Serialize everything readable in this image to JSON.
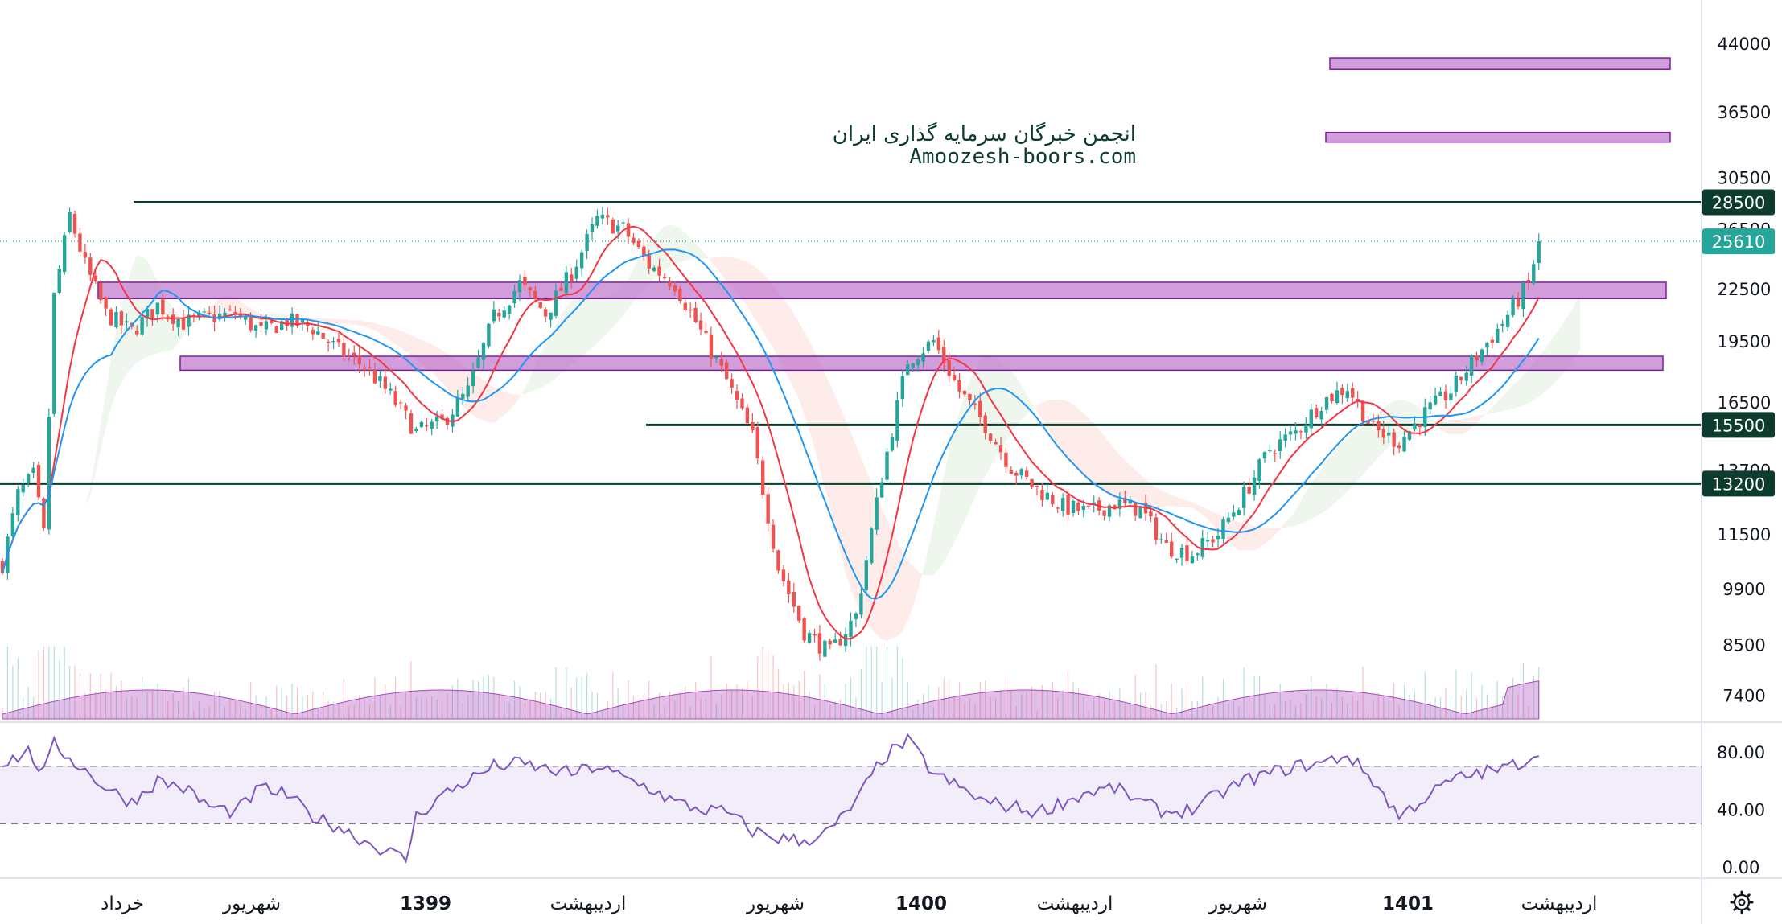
{
  "watermark": {
    "line1": "انجمن خبرگان سرمایه گذاری ایران",
    "line2": "Amoozesh-boors.com"
  },
  "price_axis": {
    "ticks": [
      "44000",
      "36500",
      "30500",
      "26500",
      "22500",
      "19500",
      "16500",
      "13700",
      "11500",
      "9900",
      "8500",
      "7400"
    ],
    "tags": [
      {
        "label": "28500",
        "color": "#0d3b2e"
      },
      {
        "label": "25610",
        "color": "#26a69a"
      },
      {
        "label": "15500",
        "color": "#0d3b2e"
      },
      {
        "label": "13200",
        "color": "#0d3b2e"
      }
    ]
  },
  "rsi_axis": {
    "ticks": [
      "80.00",
      "40.00",
      "0.00"
    ],
    "upper_band": 70,
    "lower_band": 30
  },
  "time_axis": {
    "labels": [
      {
        "text": "خرداد",
        "bold": false
      },
      {
        "text": "شهریور",
        "bold": false
      },
      {
        "text": "1399",
        "bold": true
      },
      {
        "text": "اردیبهشت",
        "bold": false
      },
      {
        "text": "شهریور",
        "bold": false
      },
      {
        "text": "1400",
        "bold": true
      },
      {
        "text": "اردیبهشت",
        "bold": false
      },
      {
        "text": "شهریور",
        "bold": false
      },
      {
        "text": "1401",
        "bold": true
      },
      {
        "text": "اردیبهشت",
        "bold": false
      }
    ]
  },
  "icons": {
    "settings": "gear-icon"
  },
  "chart_data": {
    "type": "candlestick",
    "scale": "log",
    "last_price": 25610,
    "horizontal_levels": [
      28500,
      15500,
      13200
    ],
    "zones": [
      {
        "low": 21900,
        "high": 22900
      },
      {
        "low": 18000,
        "high": 18700
      },
      {
        "low": 41000,
        "high": 42300
      },
      {
        "low": 33600,
        "high": 34500
      }
    ],
    "price_path": [
      [
        0,
        10600
      ],
      [
        3,
        12800
      ],
      [
        6,
        13500
      ],
      [
        8,
        11500
      ],
      [
        10,
        22000
      ],
      [
        13,
        27500
      ],
      [
        16,
        24000
      ],
      [
        20,
        21000
      ],
      [
        25,
        20000
      ],
      [
        30,
        21500
      ],
      [
        35,
        20500
      ],
      [
        40,
        20800
      ],
      [
        45,
        21000
      ],
      [
        50,
        20000
      ],
      [
        55,
        20600
      ],
      [
        60,
        20200
      ],
      [
        65,
        19000
      ],
      [
        70,
        18200
      ],
      [
        75,
        16800
      ],
      [
        80,
        15200
      ],
      [
        85,
        15600
      ],
      [
        90,
        17000
      ],
      [
        95,
        20800
      ],
      [
        100,
        22800
      ],
      [
        105,
        21000
      ],
      [
        110,
        23500
      ],
      [
        115,
        27200
      ],
      [
        120,
        26500
      ],
      [
        125,
        24000
      ],
      [
        130,
        22800
      ],
      [
        135,
        20000
      ],
      [
        140,
        17500
      ],
      [
        145,
        15000
      ],
      [
        150,
        10500
      ],
      [
        155,
        8800
      ],
      [
        160,
        8300
      ],
      [
        165,
        9200
      ],
      [
        170,
        13500
      ],
      [
        175,
        18500
      ],
      [
        180,
        19500
      ],
      [
        185,
        17000
      ],
      [
        190,
        15500
      ],
      [
        195,
        13800
      ],
      [
        200,
        13000
      ],
      [
        205,
        12400
      ],
      [
        210,
        12200
      ],
      [
        215,
        12500
      ],
      [
        220,
        12300
      ],
      [
        225,
        11100
      ],
      [
        230,
        10900
      ],
      [
        235,
        11500
      ],
      [
        240,
        12800
      ],
      [
        245,
        14500
      ],
      [
        250,
        15200
      ],
      [
        255,
        16500
      ],
      [
        260,
        17200
      ],
      [
        265,
        15300
      ],
      [
        270,
        14800
      ],
      [
        275,
        16000
      ],
      [
        280,
        17000
      ],
      [
        285,
        18700
      ],
      [
        290,
        20500
      ],
      [
        295,
        22800
      ],
      [
        297,
        25610
      ]
    ],
    "rsi_path": [
      [
        0,
        72
      ],
      [
        5,
        80
      ],
      [
        8,
        65
      ],
      [
        10,
        85
      ],
      [
        15,
        70
      ],
      [
        20,
        55
      ],
      [
        25,
        45
      ],
      [
        30,
        60
      ],
      [
        35,
        55
      ],
      [
        40,
        42
      ],
      [
        45,
        38
      ],
      [
        50,
        55
      ],
      [
        55,
        50
      ],
      [
        60,
        35
      ],
      [
        65,
        28
      ],
      [
        70,
        18
      ],
      [
        75,
        10
      ],
      [
        78,
        5
      ],
      [
        80,
        35
      ],
      [
        85,
        50
      ],
      [
        90,
        60
      ],
      [
        95,
        70
      ],
      [
        100,
        72
      ],
      [
        105,
        68
      ],
      [
        110,
        65
      ],
      [
        115,
        70
      ],
      [
        120,
        62
      ],
      [
        125,
        55
      ],
      [
        130,
        45
      ],
      [
        135,
        40
      ],
      [
        140,
        38
      ],
      [
        145,
        25
      ],
      [
        150,
        20
      ],
      [
        155,
        18
      ],
      [
        160,
        25
      ],
      [
        165,
        45
      ],
      [
        170,
        75
      ],
      [
        175,
        88
      ],
      [
        180,
        65
      ],
      [
        185,
        55
      ],
      [
        190,
        45
      ],
      [
        195,
        42
      ],
      [
        200,
        38
      ],
      [
        205,
        45
      ],
      [
        210,
        52
      ],
      [
        215,
        55
      ],
      [
        220,
        45
      ],
      [
        225,
        38
      ],
      [
        230,
        40
      ],
      [
        235,
        50
      ],
      [
        240,
        60
      ],
      [
        245,
        65
      ],
      [
        250,
        70
      ],
      [
        255,
        72
      ],
      [
        260,
        78
      ],
      [
        265,
        60
      ],
      [
        270,
        35
      ],
      [
        275,
        48
      ],
      [
        280,
        60
      ],
      [
        285,
        65
      ],
      [
        290,
        68
      ],
      [
        295,
        75
      ],
      [
        297,
        82
      ]
    ]
  }
}
